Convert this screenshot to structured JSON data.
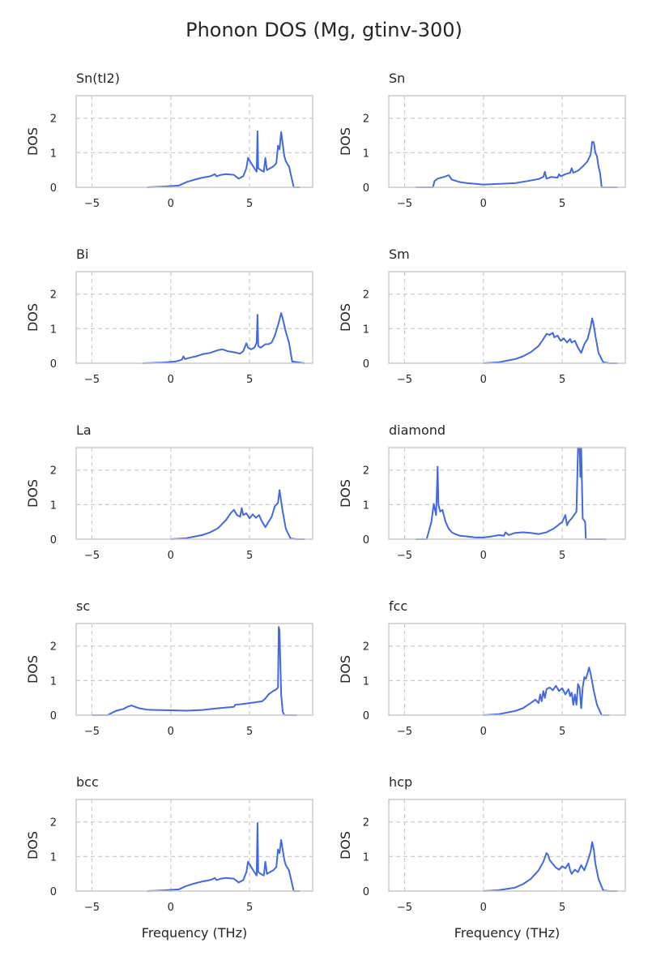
{
  "figure": {
    "title": "Phonon DOS (Mg, gtinv-300)"
  },
  "colors": {
    "line": "#4169e1",
    "grid": "#cccccc",
    "frame": "#cccccc",
    "text": "#262626"
  },
  "chart_data": [
    {
      "type": "line",
      "title": "Sn(tI2)",
      "ylabel": "DOS",
      "xlabel": "",
      "xlim": [
        -6,
        9
      ],
      "ylim": [
        0,
        2.65
      ],
      "xticks": [
        "−5",
        "0",
        "5"
      ],
      "yticks": [
        "0",
        "1",
        "2"
      ],
      "grid": true,
      "x": [
        -1.5,
        -0.5,
        0.5,
        1.0,
        1.5,
        2.0,
        2.5,
        2.8,
        2.9,
        3.2,
        3.5,
        4.0,
        4.3,
        4.6,
        4.8,
        4.9,
        5.1,
        5.3,
        5.45,
        5.5,
        5.55,
        5.7,
        5.9,
        6.0,
        6.1,
        6.3,
        6.5,
        6.7,
        6.8,
        6.9,
        7.0,
        7.2,
        7.3,
        7.5,
        7.8,
        8.2
      ],
      "y": [
        0,
        0.02,
        0.05,
        0.15,
        0.22,
        0.28,
        0.32,
        0.38,
        0.32,
        0.36,
        0.38,
        0.36,
        0.25,
        0.32,
        0.55,
        0.85,
        0.7,
        0.55,
        0.45,
        1.62,
        0.55,
        0.5,
        0.45,
        0.85,
        0.5,
        0.55,
        0.6,
        0.7,
        1.2,
        1.1,
        1.6,
        0.9,
        0.75,
        0.6,
        0,
        0
      ]
    },
    {
      "type": "line",
      "title": "Sn",
      "ylabel": "DOS",
      "xlabel": "",
      "xlim": [
        -6,
        9
      ],
      "ylim": [
        0,
        2.65
      ],
      "xticks": [
        "−5",
        "0",
        "5"
      ],
      "yticks": [
        "0",
        "1",
        "2"
      ],
      "grid": true,
      "x": [
        -4.3,
        -3.2,
        -3.1,
        -2.9,
        -2.5,
        -2.2,
        -2.0,
        -1.5,
        -1.0,
        0,
        1.0,
        2.0,
        2.8,
        3.5,
        3.8,
        3.9,
        4.0,
        4.3,
        4.7,
        4.8,
        4.9,
        5.2,
        5.5,
        5.6,
        5.7,
        6.0,
        6.3,
        6.6,
        6.8,
        6.9,
        7.0,
        7.1,
        7.2,
        7.3,
        7.4,
        7.5,
        8.5
      ],
      "y": [
        0,
        0,
        0.18,
        0.25,
        0.3,
        0.35,
        0.22,
        0.15,
        0.12,
        0.08,
        0.1,
        0.12,
        0.18,
        0.24,
        0.3,
        0.45,
        0.25,
        0.3,
        0.28,
        0.38,
        0.32,
        0.38,
        0.42,
        0.55,
        0.42,
        0.48,
        0.6,
        0.75,
        0.95,
        1.32,
        1.3,
        1.0,
        0.9,
        0.6,
        0.4,
        0,
        0
      ]
    },
    {
      "type": "line",
      "title": "Bi",
      "ylabel": "DOS",
      "xlabel": "",
      "xlim": [
        -6,
        9
      ],
      "ylim": [
        0,
        2.65
      ],
      "xticks": [
        "−5",
        "0",
        "5"
      ],
      "yticks": [
        "0",
        "1",
        "2"
      ],
      "grid": true,
      "x": [
        -1.8,
        -0.5,
        0.3,
        0.7,
        0.8,
        0.9,
        1.2,
        1.6,
        2.0,
        2.5,
        3.0,
        3.3,
        3.6,
        4.0,
        4.4,
        4.6,
        4.8,
        4.9,
        5.1,
        5.3,
        5.45,
        5.5,
        5.55,
        5.7,
        6.0,
        6.2,
        6.4,
        6.6,
        6.8,
        7.0,
        7.1,
        7.3,
        7.5,
        7.7,
        8.5
      ],
      "y": [
        0,
        0.02,
        0.05,
        0.1,
        0.2,
        0.12,
        0.16,
        0.2,
        0.26,
        0.3,
        0.38,
        0.4,
        0.35,
        0.32,
        0.28,
        0.35,
        0.58,
        0.45,
        0.4,
        0.45,
        0.6,
        1.4,
        0.5,
        0.45,
        0.55,
        0.55,
        0.6,
        0.8,
        1.1,
        1.45,
        1.3,
        0.9,
        0.6,
        0.05,
        0
      ]
    },
    {
      "type": "line",
      "title": "Sm",
      "ylabel": "DOS",
      "xlabel": "",
      "xlim": [
        -6,
        9
      ],
      "ylim": [
        0,
        2.65
      ],
      "xticks": [
        "−5",
        "0",
        "5"
      ],
      "yticks": [
        "0",
        "1",
        "2"
      ],
      "grid": true,
      "x": [
        0,
        1.0,
        2.0,
        2.5,
        3.0,
        3.5,
        3.8,
        4.0,
        4.2,
        4.4,
        4.5,
        4.7,
        4.9,
        5.1,
        5.3,
        5.5,
        5.6,
        5.8,
        6.0,
        6.2,
        6.4,
        6.6,
        6.8,
        6.9,
        7.0,
        7.1,
        7.3,
        7.6,
        8.0,
        8.5
      ],
      "y": [
        0,
        0.03,
        0.12,
        0.2,
        0.32,
        0.5,
        0.7,
        0.85,
        0.82,
        0.88,
        0.75,
        0.8,
        0.65,
        0.72,
        0.6,
        0.7,
        0.6,
        0.65,
        0.45,
        0.3,
        0.55,
        0.7,
        1.05,
        1.3,
        1.1,
        0.8,
        0.3,
        0.03,
        0,
        0
      ]
    },
    {
      "type": "line",
      "title": "La",
      "ylabel": "DOS",
      "xlabel": "",
      "xlim": [
        -6,
        9
      ],
      "ylim": [
        0,
        2.65
      ],
      "xticks": [
        "−5",
        "0",
        "5"
      ],
      "yticks": [
        "0",
        "1",
        "2"
      ],
      "grid": true,
      "x": [
        0,
        1.0,
        2.0,
        2.5,
        3.0,
        3.5,
        3.8,
        4.0,
        4.2,
        4.4,
        4.5,
        4.6,
        4.8,
        5.0,
        5.2,
        5.4,
        5.6,
        5.8,
        6.0,
        6.2,
        6.4,
        6.6,
        6.8,
        6.9,
        7.0,
        7.1,
        7.3,
        7.6,
        8.0,
        8.5
      ],
      "y": [
        0,
        0.03,
        0.12,
        0.2,
        0.32,
        0.55,
        0.75,
        0.85,
        0.7,
        0.65,
        0.9,
        0.7,
        0.75,
        0.6,
        0.72,
        0.62,
        0.7,
        0.5,
        0.35,
        0.5,
        0.65,
        0.95,
        1.05,
        1.42,
        1.1,
        0.8,
        0.3,
        0.02,
        0,
        0
      ]
    },
    {
      "type": "line",
      "title": "diamond",
      "ylabel": "DOS",
      "xlabel": "",
      "xlim": [
        -6,
        9
      ],
      "ylim": [
        0,
        2.65
      ],
      "xticks": [
        "−5",
        "0",
        "5"
      ],
      "yticks": [
        "0",
        "1",
        "2"
      ],
      "grid": true,
      "x": [
        -4.3,
        -3.6,
        -3.3,
        -3.15,
        -3.0,
        -2.9,
        -2.85,
        -2.75,
        -2.6,
        -2.4,
        -2.2,
        -2.0,
        -1.8,
        -1.5,
        -1.0,
        -0.5,
        0,
        0.5,
        1.0,
        1.3,
        1.4,
        1.6,
        2.0,
        2.5,
        3.0,
        3.5,
        4.0,
        4.5,
        5.0,
        5.2,
        5.3,
        5.4,
        5.5,
        5.6,
        5.9,
        6.0,
        6.1,
        6.15,
        6.2,
        6.3,
        6.45,
        6.5,
        7.5,
        7.8
      ],
      "y": [
        0,
        0,
        0.5,
        1.02,
        0.7,
        2.1,
        1.0,
        0.8,
        0.85,
        0.5,
        0.3,
        0.2,
        0.15,
        0.1,
        0.08,
        0.05,
        0.05,
        0.08,
        0.12,
        0.1,
        0.2,
        0.12,
        0.18,
        0.2,
        0.18,
        0.15,
        0.2,
        0.32,
        0.5,
        0.7,
        0.4,
        0.5,
        0.55,
        0.6,
        0.8,
        2.65,
        2.65,
        1.8,
        2.65,
        0.6,
        0.5,
        0,
        0,
        0
      ]
    },
    {
      "type": "line",
      "title": "sc",
      "ylabel": "DOS",
      "xlabel": "",
      "xlim": [
        -6,
        9
      ],
      "ylim": [
        0,
        2.65
      ],
      "xticks": [
        "−5",
        "0",
        "5"
      ],
      "yticks": [
        "0",
        "1",
        "2"
      ],
      "grid": true,
      "x": [
        -5.0,
        -4.0,
        -3.8,
        -3.5,
        -3.0,
        -2.7,
        -2.5,
        -2.0,
        -1.5,
        -1.0,
        0,
        1.0,
        2.0,
        3.0,
        4.0,
        4.1,
        4.5,
        5.0,
        5.5,
        5.8,
        6.0,
        6.2,
        6.5,
        6.6,
        6.7,
        6.8,
        6.85,
        6.9,
        6.95,
        7.0,
        7.1,
        7.2,
        8.0
      ],
      "y": [
        0,
        0,
        0.05,
        0.12,
        0.18,
        0.25,
        0.28,
        0.2,
        0.16,
        0.15,
        0.14,
        0.13,
        0.15,
        0.2,
        0.24,
        0.3,
        0.32,
        0.35,
        0.38,
        0.4,
        0.48,
        0.6,
        0.7,
        0.72,
        0.75,
        0.8,
        2.55,
        2.45,
        1.5,
        0.6,
        0.1,
        0,
        0
      ]
    },
    {
      "type": "line",
      "title": "fcc",
      "ylabel": "DOS",
      "xlabel": "",
      "xlim": [
        -6,
        9
      ],
      "ylim": [
        0,
        2.65
      ],
      "xticks": [
        "−5",
        "0",
        "5"
      ],
      "yticks": [
        "0",
        "1",
        "2"
      ],
      "grid": true,
      "x": [
        0,
        1.0,
        2.0,
        2.5,
        3.0,
        3.3,
        3.5,
        3.6,
        3.7,
        3.8,
        3.9,
        4.0,
        4.2,
        4.4,
        4.6,
        4.8,
        5.0,
        5.2,
        5.4,
        5.5,
        5.6,
        5.7,
        5.8,
        5.9,
        6.0,
        6.1,
        6.2,
        6.3,
        6.4,
        6.5,
        6.6,
        6.7,
        6.8,
        7.0,
        7.2,
        7.5,
        8.0
      ],
      "y": [
        0,
        0.03,
        0.12,
        0.2,
        0.35,
        0.45,
        0.35,
        0.6,
        0.4,
        0.7,
        0.5,
        0.75,
        0.8,
        0.72,
        0.85,
        0.7,
        0.78,
        0.6,
        0.75,
        0.55,
        0.65,
        0.3,
        0.6,
        0.3,
        0.9,
        0.8,
        0.2,
        0.8,
        1.1,
        1.05,
        1.2,
        1.38,
        1.2,
        0.7,
        0.3,
        0,
        0
      ]
    },
    {
      "type": "line",
      "title": "bcc",
      "ylabel": "DOS",
      "xlabel": "",
      "xlim": [
        -6,
        9
      ],
      "ylim": [
        0,
        2.65
      ],
      "xticks": [
        "−5",
        "0",
        "5"
      ],
      "yticks": [
        "0",
        "1",
        "2"
      ],
      "grid": true,
      "x": [
        -1.5,
        -0.5,
        0.5,
        1.0,
        1.5,
        2.0,
        2.5,
        2.8,
        2.9,
        3.2,
        3.5,
        4.0,
        4.3,
        4.6,
        4.8,
        4.9,
        5.1,
        5.3,
        5.45,
        5.5,
        5.55,
        5.7,
        5.9,
        6.0,
        6.1,
        6.3,
        6.5,
        6.7,
        6.8,
        6.9,
        7.0,
        7.2,
        7.3,
        7.5,
        7.8,
        8.2
      ],
      "y": [
        0,
        0.02,
        0.05,
        0.15,
        0.22,
        0.28,
        0.32,
        0.38,
        0.32,
        0.36,
        0.38,
        0.36,
        0.25,
        0.32,
        0.55,
        0.85,
        0.7,
        0.55,
        0.45,
        1.97,
        0.55,
        0.5,
        0.45,
        0.85,
        0.5,
        0.55,
        0.6,
        0.7,
        1.2,
        1.1,
        1.48,
        0.9,
        0.75,
        0.6,
        0,
        0
      ]
    },
    {
      "type": "line",
      "title": "hcp",
      "ylabel": "DOS",
      "xlabel": "",
      "xlim": [
        -6,
        9
      ],
      "ylim": [
        0,
        2.65
      ],
      "xticks": [
        "−5",
        "0",
        "5"
      ],
      "yticks": [
        "0",
        "1",
        "2"
      ],
      "grid": true,
      "x": [
        0,
        1.0,
        2.0,
        2.5,
        3.0,
        3.5,
        3.8,
        4.0,
        4.1,
        4.2,
        4.4,
        4.6,
        4.8,
        5.0,
        5.2,
        5.4,
        5.5,
        5.6,
        5.8,
        6.0,
        6.2,
        6.4,
        6.6,
        6.8,
        6.9,
        7.0,
        7.1,
        7.3,
        7.6,
        8.0,
        8.5
      ],
      "y": [
        0,
        0.03,
        0.1,
        0.2,
        0.35,
        0.6,
        0.85,
        1.1,
        1.05,
        0.9,
        0.78,
        0.68,
        0.62,
        0.72,
        0.66,
        0.8,
        0.6,
        0.5,
        0.62,
        0.55,
        0.75,
        0.6,
        0.85,
        1.15,
        1.42,
        1.2,
        0.8,
        0.35,
        0.02,
        0,
        0
      ]
    }
  ],
  "xaxis_label": "Frequency (THz)"
}
